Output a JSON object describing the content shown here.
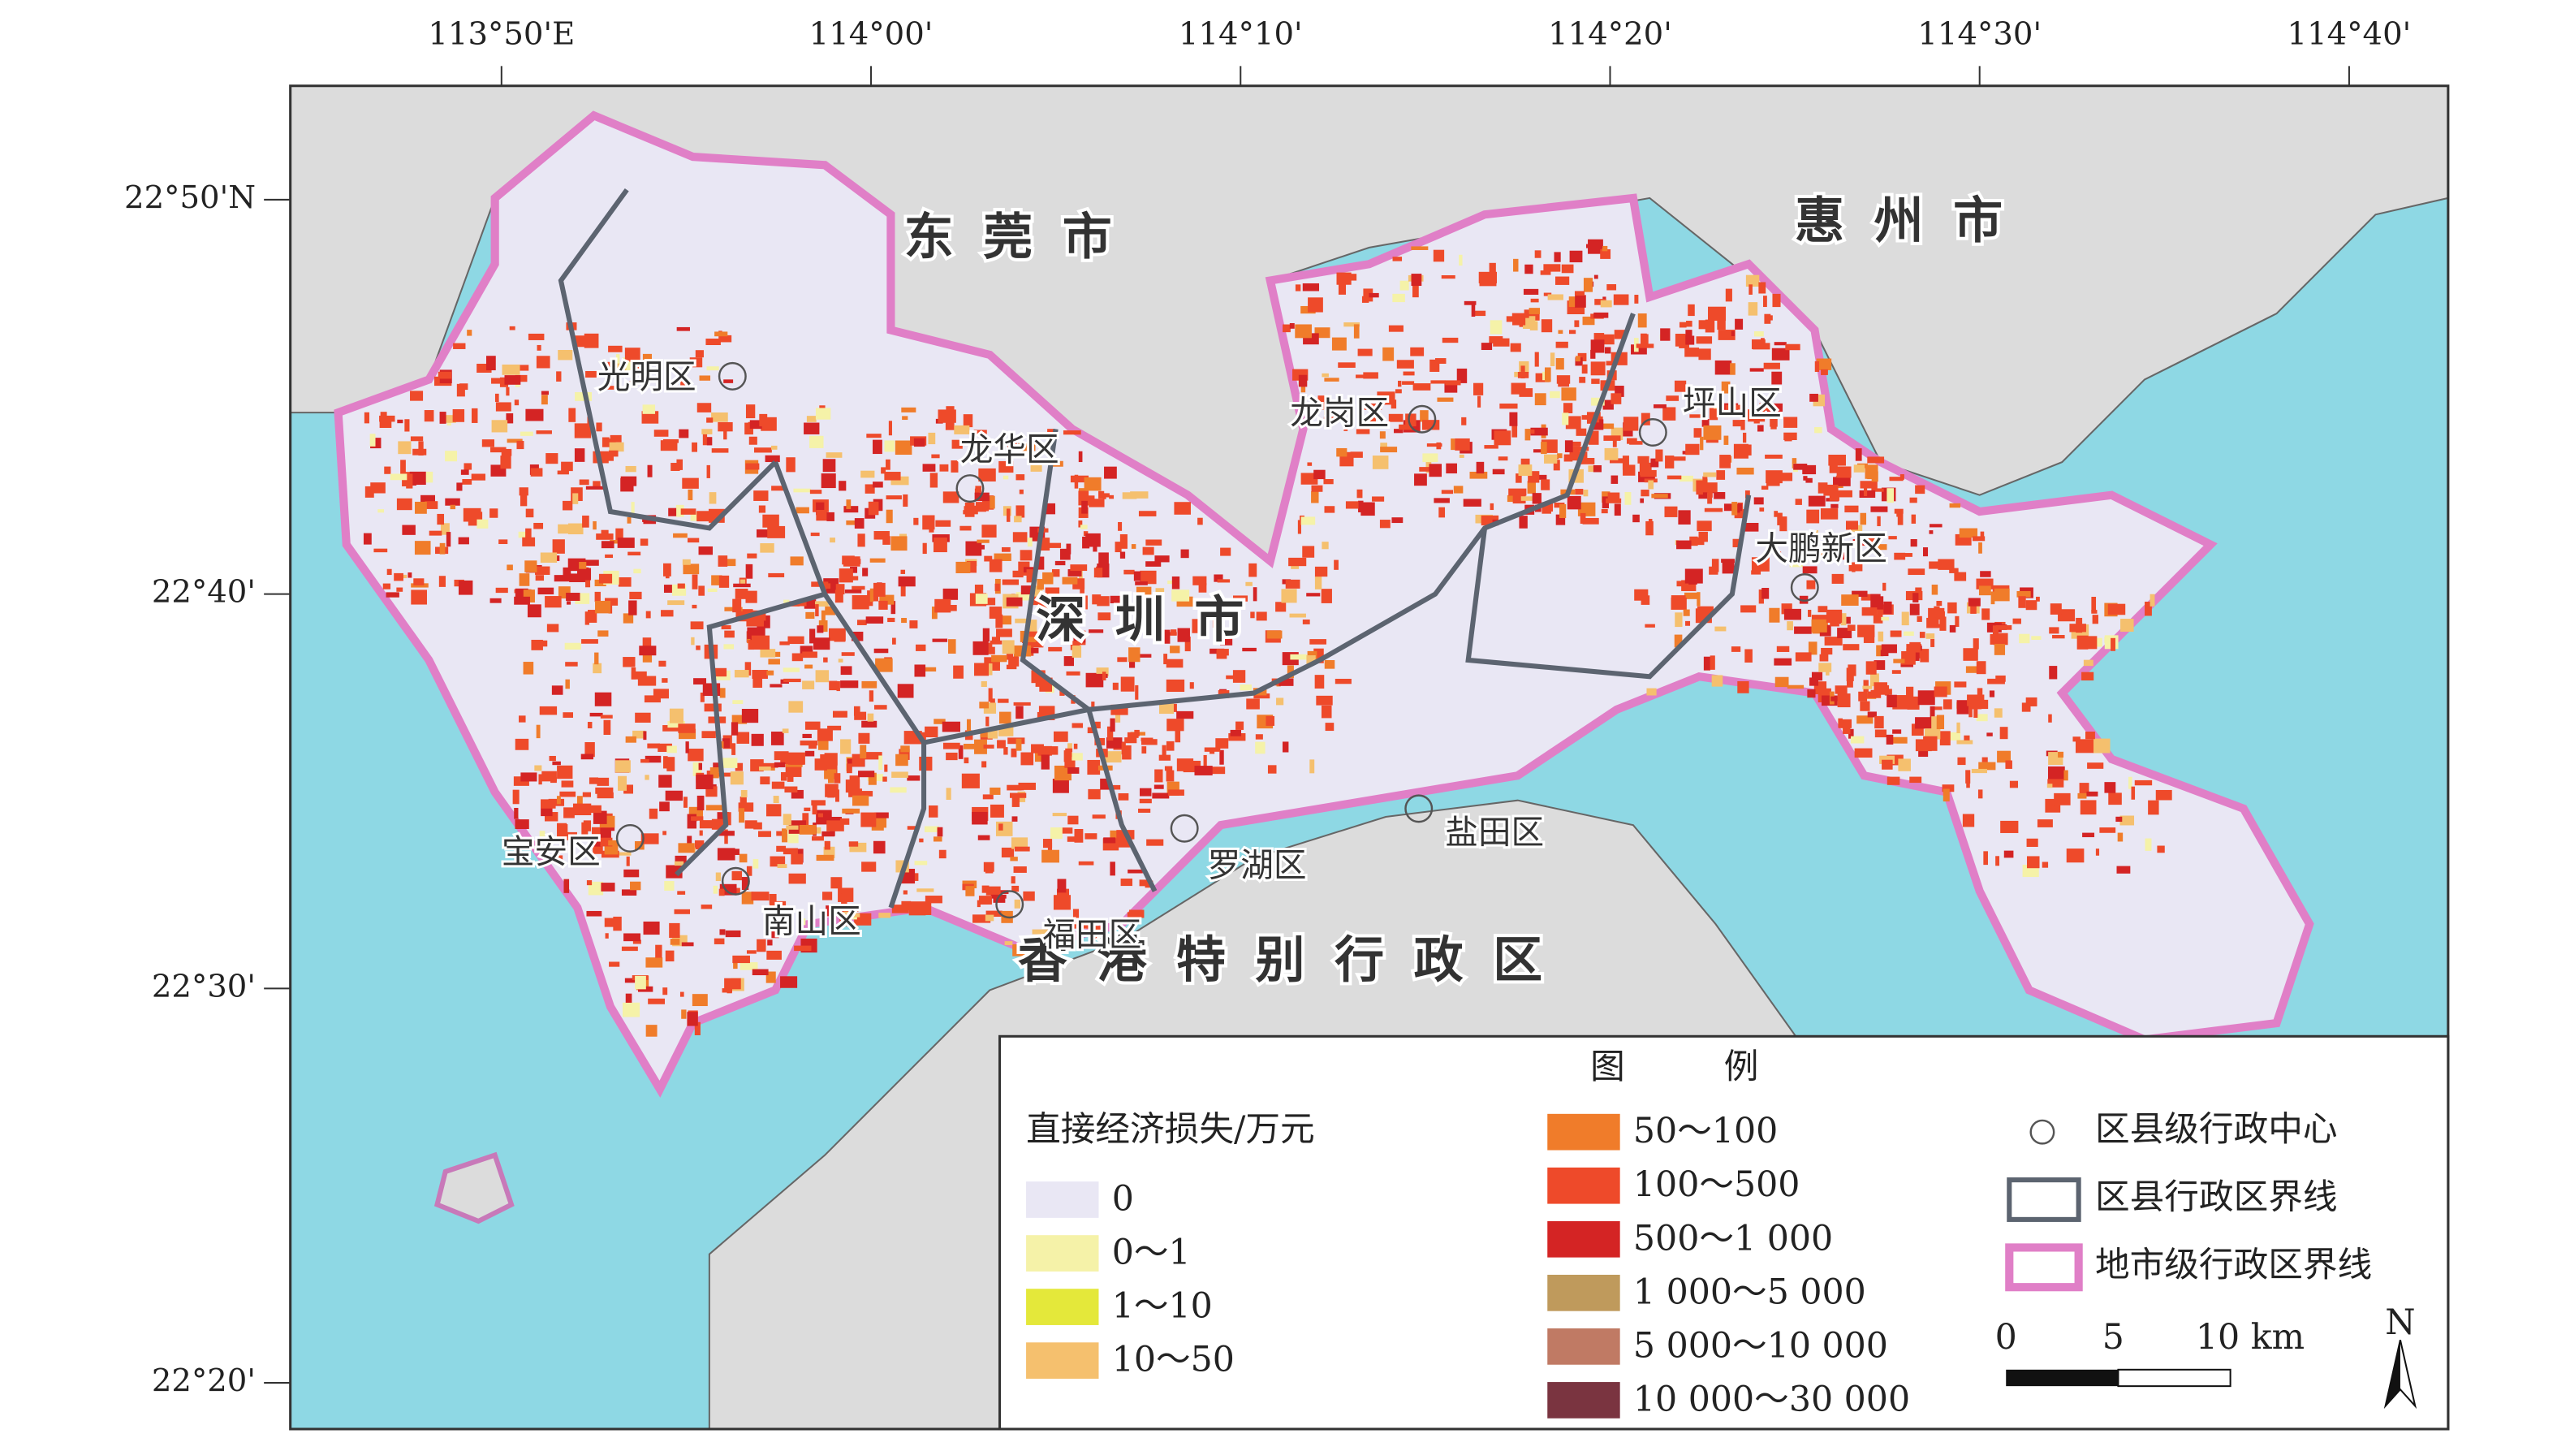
{
  "axes": {
    "top": [
      "113°50'E",
      "114°00'",
      "114°10'",
      "114°20'",
      "114°30'",
      "114°40'"
    ],
    "left": [
      "22°50'N",
      "22°40'",
      "22°30'",
      "22°20'"
    ]
  },
  "regions": [
    "东莞市",
    "惠州市",
    "深圳市",
    "香港特别行政区"
  ],
  "districts": [
    "光明区",
    "龙华区",
    "龙岗区",
    "坪山区",
    "大鹏新区",
    "宝安区",
    "南山区",
    "福田区",
    "罗湖区",
    "盐田区"
  ],
  "legend": {
    "title": "图例",
    "subtitle": "直接经济损失/万元",
    "classes": [
      {
        "label": "0",
        "color": "#e9e7f4"
      },
      {
        "label": "0～1",
        "color": "#f5f2a8"
      },
      {
        "label": "1～10",
        "color": "#e4e83a"
      },
      {
        "label": "10～50",
        "color": "#f5c06e"
      },
      {
        "label": "50～100",
        "color": "#f07c2a"
      },
      {
        "label": "100～500",
        "color": "#ee4a2a"
      },
      {
        "label": "500～1 000",
        "color": "#d42424"
      },
      {
        "label": "1 000～5 000",
        "color": "#bf9a5c"
      },
      {
        "label": "5 000～10 000",
        "color": "#c07a64"
      },
      {
        "label": "10 000～30 000",
        "color": "#7a3440"
      }
    ],
    "symbols": [
      "区县级行政中心",
      "区县行政区界线",
      "地市级行政区界线"
    ]
  },
  "scale_bar": [
    "0",
    "5",
    "10 km"
  ],
  "north": "N"
}
